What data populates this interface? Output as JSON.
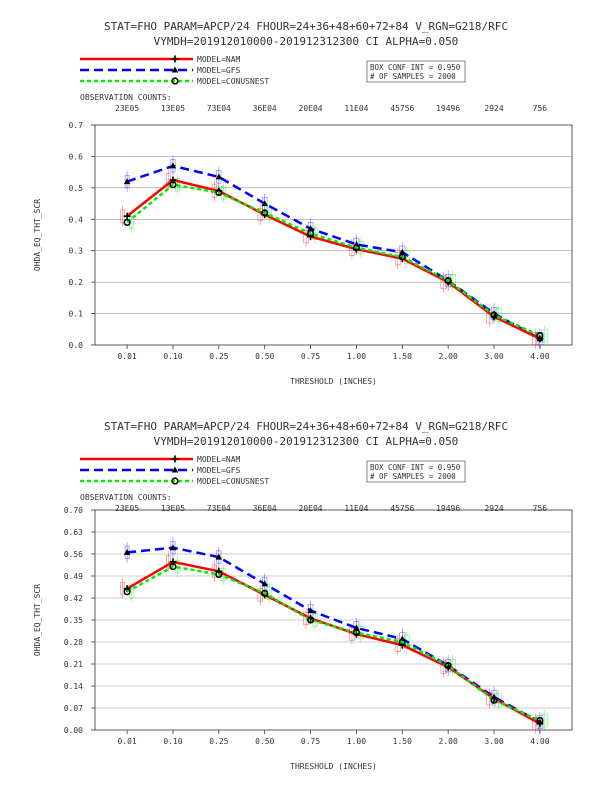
{
  "legend_labels": [
    "MODEL=NAM",
    "MODEL=GFS",
    "MODEL=CONUSNEST"
  ],
  "box_info": [
    "BOX CONF INT = 0.950",
    "# OF SAMPLES =   2000"
  ],
  "obs_counts_label": "OBSERVATION COUNTS:",
  "obs_counts": [
    "23E05",
    "13E05",
    "73E04",
    "36E04",
    "20E04",
    "11E04",
    "45756",
    "19496",
    "2924",
    "756"
  ],
  "series_colors": [
    "#ff0000",
    "#0000ff",
    "#00ee00"
  ],
  "chart_data": [
    {
      "type": "line",
      "title": [
        "STAT=FHO PARAM=APCP/24 FHOUR=24+36+48+60+72+84 V_RGN=G218/RFC",
        "VYMDH=201912010000-201912312300 CI ALPHA=0.050"
      ],
      "xlabel": "THRESHOLD (INCHES)",
      "ylabel": "OHDA_EQ_THT_SCR",
      "categories": [
        "0.01",
        "0.10",
        "0.25",
        "0.50",
        "0.75",
        "1.00",
        "1.50",
        "2.00",
        "3.00",
        "4.00"
      ],
      "ylim": [
        0,
        0.7
      ],
      "yticks": [
        "0.0",
        "0.1",
        "0.2",
        "0.3",
        "0.4",
        "0.5",
        "0.6",
        "0.7"
      ],
      "series": [
        {
          "name": "MODEL=NAM",
          "values": [
            0.41,
            0.525,
            0.49,
            0.415,
            0.345,
            0.305,
            0.275,
            0.2,
            0.09,
            0.02
          ]
        },
        {
          "name": "MODEL=GFS",
          "values": [
            0.52,
            0.57,
            0.535,
            0.45,
            0.37,
            0.32,
            0.295,
            0.205,
            0.1,
            0.02
          ]
        },
        {
          "name": "MODEL=CONUSNEST",
          "values": [
            0.39,
            0.51,
            0.485,
            0.42,
            0.355,
            0.31,
            0.28,
            0.205,
            0.095,
            0.03
          ]
        }
      ]
    },
    {
      "type": "line",
      "title": [
        "STAT=FHO PARAM=APCP/24 FHOUR=24+36+48+60+72+84 V_RGN=G218/RFC",
        "VYMDH=201912010000-201912312300 CI ALPHA=0.050"
      ],
      "xlabel": "THRESHOLD (INCHES)",
      "ylabel": "OHDA_EQ_THT_SCR",
      "categories": [
        "0.01",
        "0.10",
        "0.25",
        "0.50",
        "0.75",
        "1.00",
        "1.50",
        "2.00",
        "3.00",
        "4.00"
      ],
      "ylim": [
        0,
        0.7
      ],
      "yticks": [
        "0.00",
        "0.07",
        "0.14",
        "0.21",
        "0.28",
        "0.35",
        "0.42",
        "0.49",
        "0.56",
        "0.63",
        "0.70"
      ],
      "series": [
        {
          "name": "MODEL=NAM",
          "values": [
            0.45,
            0.535,
            0.505,
            0.43,
            0.355,
            0.305,
            0.27,
            0.2,
            0.1,
            0.02
          ]
        },
        {
          "name": "MODEL=GFS",
          "values": [
            0.565,
            0.58,
            0.55,
            0.465,
            0.38,
            0.325,
            0.29,
            0.205,
            0.105,
            0.025
          ]
        },
        {
          "name": "MODEL=CONUSNEST",
          "values": [
            0.44,
            0.52,
            0.495,
            0.435,
            0.35,
            0.31,
            0.28,
            0.205,
            0.095,
            0.03
          ]
        }
      ]
    }
  ]
}
